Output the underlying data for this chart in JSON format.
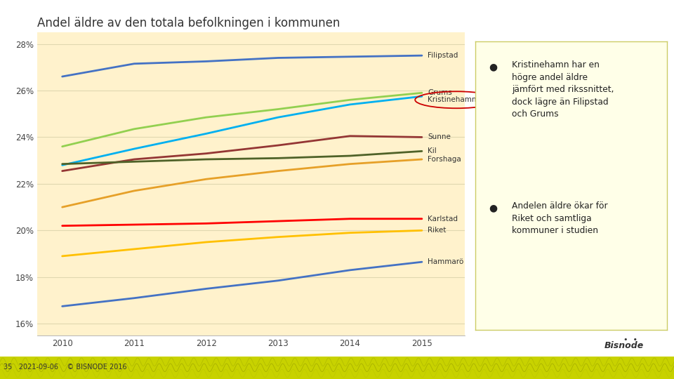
{
  "title": "Andel äldre av den totala befolkningen i kommunen",
  "years": [
    2010,
    2011,
    2012,
    2013,
    2014,
    2015
  ],
  "series_order": [
    "Filipstad",
    "Grums",
    "Kristinehamn",
    "Sunne",
    "Kil",
    "Forshaga",
    "Karlstad",
    "Riket",
    "Hammarö"
  ],
  "series": {
    "Filipstad": {
      "values": [
        26.6,
        27.15,
        27.25,
        27.4,
        27.45,
        27.5
      ],
      "color": "#4472C4"
    },
    "Grums": {
      "values": [
        23.6,
        24.35,
        24.85,
        25.2,
        25.6,
        25.9
      ],
      "color": "#92D050"
    },
    "Kristinehamn": {
      "values": [
        22.8,
        23.5,
        24.15,
        24.85,
        25.4,
        25.75
      ],
      "color": "#00B0F0"
    },
    "Sunne": {
      "values": [
        22.55,
        23.05,
        23.3,
        23.65,
        24.05,
        24.0
      ],
      "color": "#943634"
    },
    "Kil": {
      "values": [
        22.85,
        22.95,
        23.05,
        23.1,
        23.2,
        23.4
      ],
      "color": "#4F6228"
    },
    "Forshaga": {
      "values": [
        21.0,
        21.7,
        22.2,
        22.55,
        22.85,
        23.05
      ],
      "color": "#E6A028"
    },
    "Karlstad": {
      "values": [
        20.2,
        20.25,
        20.3,
        20.4,
        20.5,
        20.5
      ],
      "color": "#FF0000"
    },
    "Riket": {
      "values": [
        18.9,
        19.2,
        19.5,
        19.72,
        19.9,
        20.0
      ],
      "color": "#FFC000"
    },
    "Hammarö": {
      "values": [
        16.75,
        17.1,
        17.5,
        17.85,
        18.3,
        18.65
      ],
      "color": "#4472C4"
    }
  },
  "ylim": [
    15.5,
    28.5
  ],
  "yticks": [
    16,
    18,
    20,
    22,
    24,
    26,
    28
  ],
  "plot_bg": "#FFF2CC",
  "outer_bg": "#FFFFFF",
  "grid_color": "#E0D8B0",
  "ann_bg": "#FFFFE8",
  "ann_border": "#CCCC66",
  "footer_bg": "#C8D200",
  "footer_text": "35   2021-09-06    © BISNODE 2016",
  "bullet_text1": "Kristinehamn har en\nhögre andel äldre\njämfört med rikssnittet,\ndock lägre än Filipstad\noch Grums",
  "bullet_text2": "Andelen äldre ökar för\nRiket och samtliga\nkommuner i studien"
}
